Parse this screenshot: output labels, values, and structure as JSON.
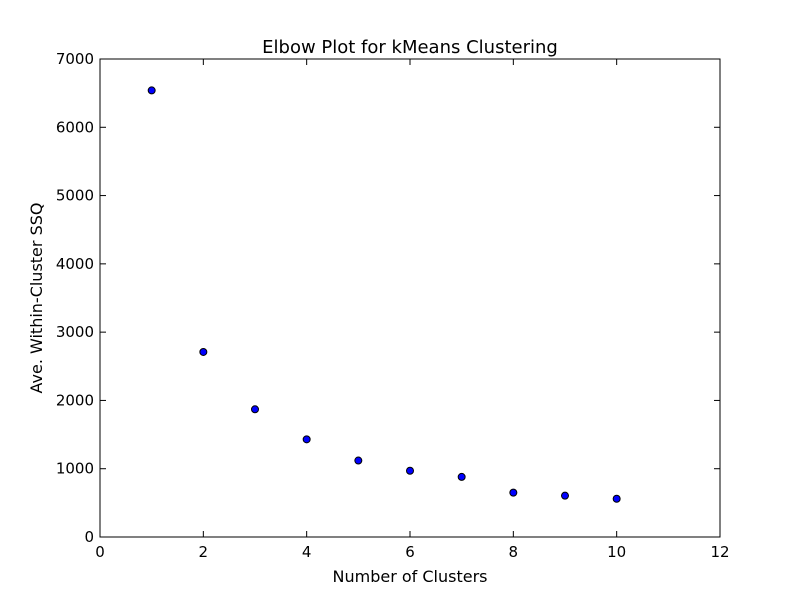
{
  "chart_data": {
    "type": "scatter",
    "title": "Elbow Plot for kMeans Clustering",
    "xlabel": "Number of Clusters",
    "ylabel": "Ave. Within-Cluster SSQ",
    "xlim": [
      0,
      12
    ],
    "ylim": [
      0,
      7000
    ],
    "xticks": [
      0,
      2,
      4,
      6,
      8,
      10,
      12
    ],
    "yticks": [
      0,
      1000,
      2000,
      3000,
      4000,
      5000,
      6000,
      7000
    ],
    "grid": false,
    "marker_color": "#0000ff",
    "marker_edge_color": "#000000",
    "x": [
      1,
      2,
      3,
      4,
      5,
      6,
      7,
      8,
      9,
      10
    ],
    "y": [
      6540,
      2710,
      1870,
      1430,
      1120,
      970,
      880,
      650,
      605,
      560
    ]
  }
}
